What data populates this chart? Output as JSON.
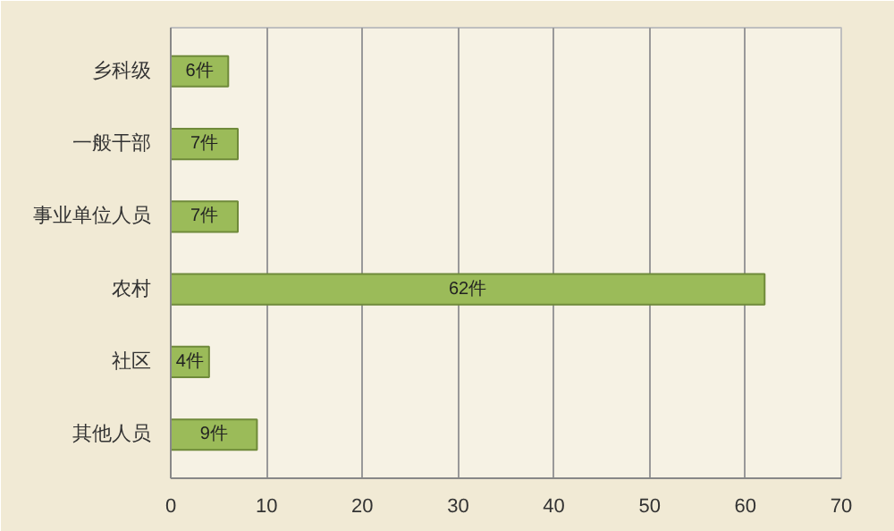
{
  "chart_data": {
    "type": "bar",
    "orientation": "horizontal",
    "categories": [
      "乡科级",
      "一般干部",
      "事业单位人员",
      "农村",
      "社区",
      "其他人员"
    ],
    "values": [
      6,
      7,
      7,
      62,
      4,
      9
    ],
    "value_labels": [
      "6件",
      "7件",
      "7件",
      "62件",
      "4件",
      "9件"
    ],
    "color": "#9bbb59",
    "xlim": [
      0,
      70
    ],
    "xticks": [
      0,
      10,
      20,
      30,
      40,
      50,
      60,
      70
    ],
    "grid": "x"
  }
}
